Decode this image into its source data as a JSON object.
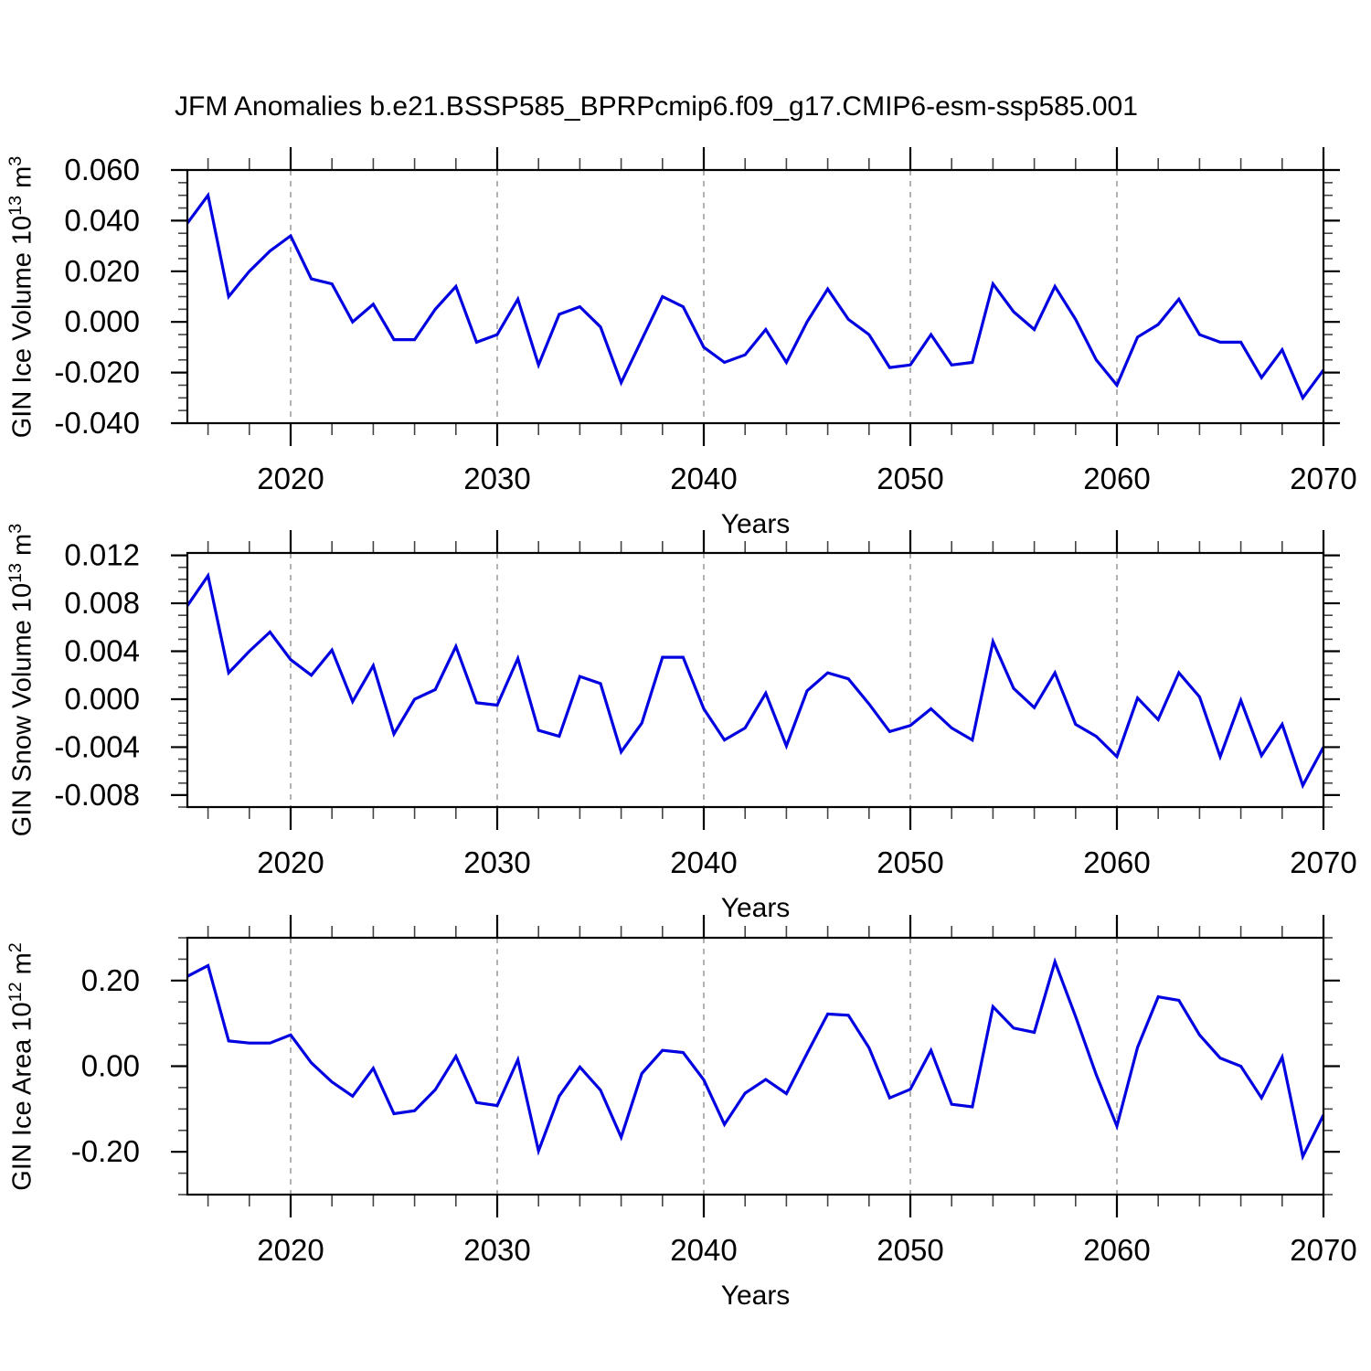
{
  "title": "JFM Anomalies b.e21.BSSP585_BPRPcmip6.f09_g17.CMIP6-esm-ssp585.001",
  "colors": {
    "line": "#0000e0",
    "grid": "#999999",
    "axis": "#000000",
    "minor_tick": "#444444",
    "text": "#000000"
  },
  "chart_data": {
    "type": "line",
    "x_label": "Years",
    "x": [
      2015,
      2016,
      2017,
      2018,
      2019,
      2020,
      2021,
      2022,
      2023,
      2024,
      2025,
      2026,
      2027,
      2028,
      2029,
      2030,
      2031,
      2032,
      2033,
      2034,
      2035,
      2036,
      2037,
      2038,
      2039,
      2040,
      2041,
      2042,
      2043,
      2044,
      2045,
      2046,
      2047,
      2048,
      2049,
      2050,
      2051,
      2052,
      2053,
      2054,
      2055,
      2056,
      2057,
      2058,
      2059,
      2060,
      2061,
      2062,
      2063,
      2064,
      2065,
      2066,
      2067,
      2068,
      2069,
      2070
    ],
    "xlim": [
      2015,
      2070
    ],
    "x_major_ticks": [
      {
        "v": 2020,
        "label": "2020"
      },
      {
        "v": 2030,
        "label": "2030"
      },
      {
        "v": 2040,
        "label": "2040"
      },
      {
        "v": 2050,
        "label": "2050"
      },
      {
        "v": 2060,
        "label": "2060"
      },
      {
        "v": 2070,
        "label": "2070"
      }
    ],
    "x_minor_step": 2,
    "grid_lines_x": [
      2020,
      2030,
      2040,
      2050,
      2060
    ],
    "legend": "none",
    "grid": "vertical-dashed-only",
    "panels": [
      {
        "name": "gin_ice_volume",
        "ylabel": {
          "text": "GIN Ice Volume 10",
          "exp": "13",
          "unit": " m",
          "unit_exp": "3"
        },
        "ylim": [
          -0.04,
          0.06
        ],
        "y_major_ticks": [
          {
            "v": 0.06,
            "label": "0.060"
          },
          {
            "v": 0.04,
            "label": "0.040"
          },
          {
            "v": 0.02,
            "label": "0.020"
          },
          {
            "v": 0.0,
            "label": "0.000"
          },
          {
            "v": -0.02,
            "label": "-0.020"
          },
          {
            "v": -0.04,
            "label": "-0.040"
          }
        ],
        "y_minor_step": 0.005,
        "values": [
          0.039,
          0.05,
          0.01,
          0.02,
          0.028,
          0.034,
          0.017,
          0.015,
          0.0,
          0.007,
          -0.007,
          -0.007,
          0.005,
          0.014,
          -0.008,
          -0.005,
          0.009,
          -0.017,
          0.003,
          0.006,
          -0.002,
          -0.024,
          -0.007,
          0.01,
          0.006,
          -0.01,
          -0.016,
          -0.013,
          -0.003,
          -0.016,
          0.0,
          0.013,
          0.001,
          -0.005,
          -0.018,
          -0.017,
          -0.005,
          -0.017,
          -0.016,
          0.015,
          0.004,
          -0.003,
          0.014,
          0.001,
          -0.015,
          -0.025,
          -0.006,
          -0.001,
          0.009,
          -0.005,
          -0.008,
          -0.008,
          -0.022,
          -0.011,
          -0.03,
          -0.019
        ]
      },
      {
        "name": "gin_snow_volume",
        "ylabel": {
          "text": "GIN Snow Volume 10",
          "exp": "13",
          "unit": " m",
          "unit_exp": "3"
        },
        "ylim": [
          -0.009,
          0.0122
        ],
        "y_major_ticks": [
          {
            "v": 0.012,
            "label": "0.012"
          },
          {
            "v": 0.008,
            "label": "0.008"
          },
          {
            "v": 0.004,
            "label": "0.004"
          },
          {
            "v": 0.0,
            "label": "0.000"
          },
          {
            "v": -0.004,
            "label": "-0.004"
          },
          {
            "v": -0.008,
            "label": "-0.008"
          }
        ],
        "y_minor_step": 0.001,
        "values": [
          0.0078,
          0.0103,
          0.0022,
          0.004,
          0.0056,
          0.0033,
          0.002,
          0.0041,
          -0.0002,
          0.0028,
          -0.0029,
          0.0,
          0.0008,
          0.0044,
          -0.0003,
          -0.0005,
          0.0034,
          -0.0026,
          -0.0031,
          0.0019,
          0.0013,
          -0.0044,
          -0.002,
          0.0035,
          0.0035,
          -0.0008,
          -0.0034,
          -0.0024,
          0.0005,
          -0.0039,
          0.0007,
          0.0022,
          0.0017,
          -0.0004,
          -0.0027,
          -0.0022,
          -0.0008,
          -0.0024,
          -0.0034,
          0.0048,
          0.0009,
          -0.0007,
          0.0022,
          -0.0021,
          -0.0031,
          -0.0048,
          0.0001,
          -0.0017,
          0.0022,
          0.0002,
          -0.0048,
          -0.0001,
          -0.0047,
          -0.0021,
          -0.0072,
          -0.004
        ]
      },
      {
        "name": "gin_ice_area",
        "ylabel": {
          "text": "GIN Ice Area 10",
          "exp": "12",
          "unit": " m",
          "unit_exp": "2"
        },
        "ylim": [
          -0.3,
          0.3
        ],
        "y_major_ticks": [
          {
            "v": 0.2,
            "label": "0.20"
          },
          {
            "v": 0.0,
            "label": "0.00"
          },
          {
            "v": -0.2,
            "label": "-0.20"
          }
        ],
        "y_minor_step": 0.05,
        "values": [
          0.21,
          0.235,
          0.059,
          0.054,
          0.054,
          0.073,
          0.008,
          -0.037,
          -0.07,
          -0.005,
          -0.111,
          -0.104,
          -0.055,
          0.023,
          -0.085,
          -0.092,
          0.015,
          -0.198,
          -0.07,
          -0.002,
          -0.056,
          -0.166,
          -0.017,
          0.037,
          0.032,
          -0.032,
          -0.136,
          -0.063,
          -0.031,
          -0.064,
          0.03,
          0.122,
          0.119,
          0.043,
          -0.074,
          -0.054,
          0.037,
          -0.089,
          -0.095,
          0.139,
          0.089,
          0.079,
          0.244,
          0.116,
          -0.02,
          -0.14,
          0.044,
          0.162,
          0.154,
          0.073,
          0.019,
          0.0,
          -0.074,
          0.021,
          -0.211,
          -0.114
        ]
      }
    ]
  }
}
